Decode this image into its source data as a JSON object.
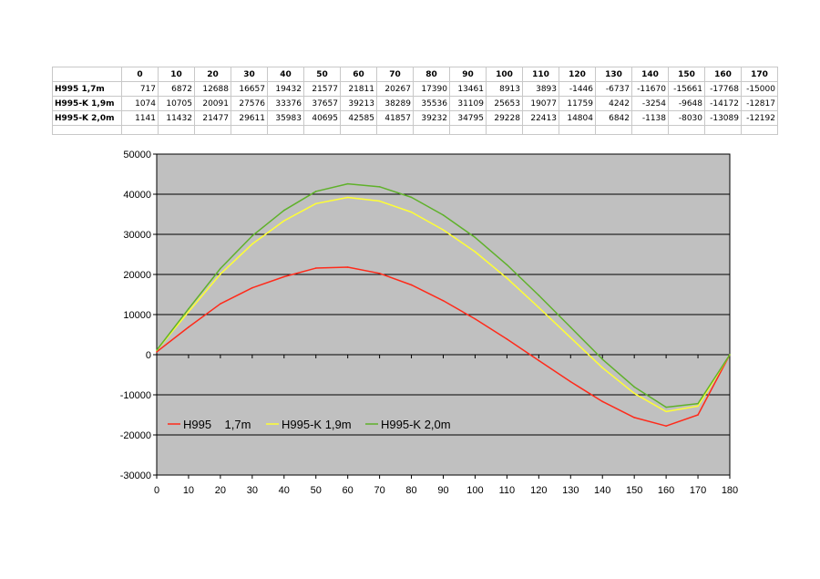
{
  "table": {
    "header": [
      "",
      "0",
      "10",
      "20",
      "30",
      "40",
      "50",
      "60",
      "70",
      "80",
      "90",
      "100",
      "110",
      "120",
      "130",
      "140",
      "150",
      "160",
      "170"
    ],
    "rows": [
      {
        "label": "H995    1,7m",
        "values": [
          "717",
          "6872",
          "12688",
          "16657",
          "19432",
          "21577",
          "21811",
          "20267",
          "17390",
          "13461",
          "8913",
          "3893",
          "-1446",
          "-6737",
          "-11670",
          "-15661",
          "-17768",
          "-15000"
        ]
      },
      {
        "label": "H995-K 1,9m",
        "values": [
          "1074",
          "10705",
          "20091",
          "27576",
          "33376",
          "37657",
          "39213",
          "38289",
          "35536",
          "31109",
          "25653",
          "19077",
          "11759",
          "4242",
          "-3254",
          "-9648",
          "-14172",
          "-12817"
        ]
      },
      {
        "label": "H995-K 2,0m",
        "values": [
          "1141",
          "11432",
          "21477",
          "29611",
          "35983",
          "40695",
          "42585",
          "41857",
          "39232",
          "34795",
          "29228",
          "22413",
          "14804",
          "6842",
          "-1138",
          "-8030",
          "-13089",
          "-12192"
        ]
      }
    ]
  },
  "chart_data": {
    "type": "line",
    "x": [
      0,
      10,
      20,
      30,
      40,
      50,
      60,
      70,
      80,
      90,
      100,
      110,
      120,
      130,
      140,
      150,
      160,
      170,
      180
    ],
    "xticks": [
      0,
      10,
      20,
      30,
      40,
      50,
      60,
      70,
      80,
      90,
      100,
      110,
      120,
      130,
      140,
      150,
      160,
      170,
      180
    ],
    "yticks": [
      50000,
      40000,
      30000,
      20000,
      10000,
      0,
      -10000,
      -20000,
      -30000
    ],
    "xlim": [
      0,
      180
    ],
    "ylim": [
      -30000,
      50000
    ],
    "grid": true,
    "legend_position": "inside-bottom-left",
    "plot_background": "#c0c0c0",
    "series": [
      {
        "name": "H995    1,7m",
        "color": "#ff2a1a",
        "values": [
          717,
          6872,
          12688,
          16657,
          19432,
          21577,
          21811,
          20267,
          17390,
          13461,
          8913,
          3893,
          -1446,
          -6737,
          -11670,
          -15661,
          -17768,
          -15000,
          0
        ]
      },
      {
        "name": "H995-K 1,9m",
        "color": "#ffff33",
        "values": [
          1074,
          10705,
          20091,
          27576,
          33376,
          37657,
          39213,
          38289,
          35536,
          31109,
          25653,
          19077,
          11759,
          4242,
          -3254,
          -9648,
          -14172,
          -12817,
          0
        ]
      },
      {
        "name": "H995-K 2,0m",
        "color": "#5fb12a",
        "values": [
          1141,
          11432,
          21477,
          29611,
          35983,
          40695,
          42585,
          41857,
          39232,
          34795,
          29228,
          22413,
          14804,
          6842,
          -1138,
          -8030,
          -13089,
          -12192,
          0
        ]
      }
    ]
  }
}
